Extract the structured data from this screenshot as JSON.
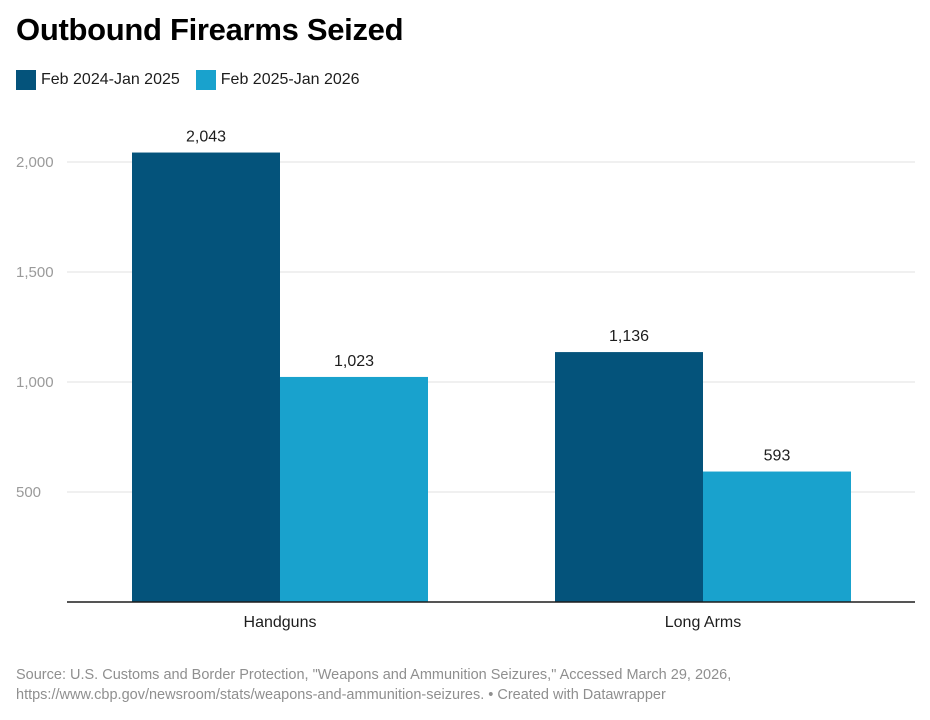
{
  "chart_data": {
    "type": "bar",
    "title": "Outbound Firearms Seized",
    "categories": [
      "Handguns",
      "Long Arms"
    ],
    "series": [
      {
        "name": "Feb 2024-Jan 2025",
        "values": [
          2043,
          1136
        ],
        "labels": [
          "2,043",
          "1,136"
        ],
        "color": "#04537b"
      },
      {
        "name": "Feb 2025-Jan 2026",
        "values": [
          1023,
          593
        ],
        "labels": [
          "1,023",
          "593"
        ],
        "color": "#19a2cd"
      }
    ],
    "yticks": [
      500,
      1000,
      1500,
      2000
    ],
    "ytick_labels": [
      "500",
      "1,000",
      "1,500",
      "2,000"
    ],
    "ylim": [
      0,
      2200
    ],
    "xlabel": "",
    "ylabel": "",
    "grid": true,
    "legend": "top-left"
  },
  "footer": {
    "source_line1": "Source: U.S. Customs and Border Protection, \"Weapons and Ammunition Seizures,\" Accessed March 29, 2026,",
    "source_line2": "https://www.cbp.gov/newsroom/stats/weapons-and-ammunition-seizures. • Created with Datawrapper"
  },
  "colors": {
    "grid": "#e2e2e2",
    "axis": "#1d1d1d"
  }
}
